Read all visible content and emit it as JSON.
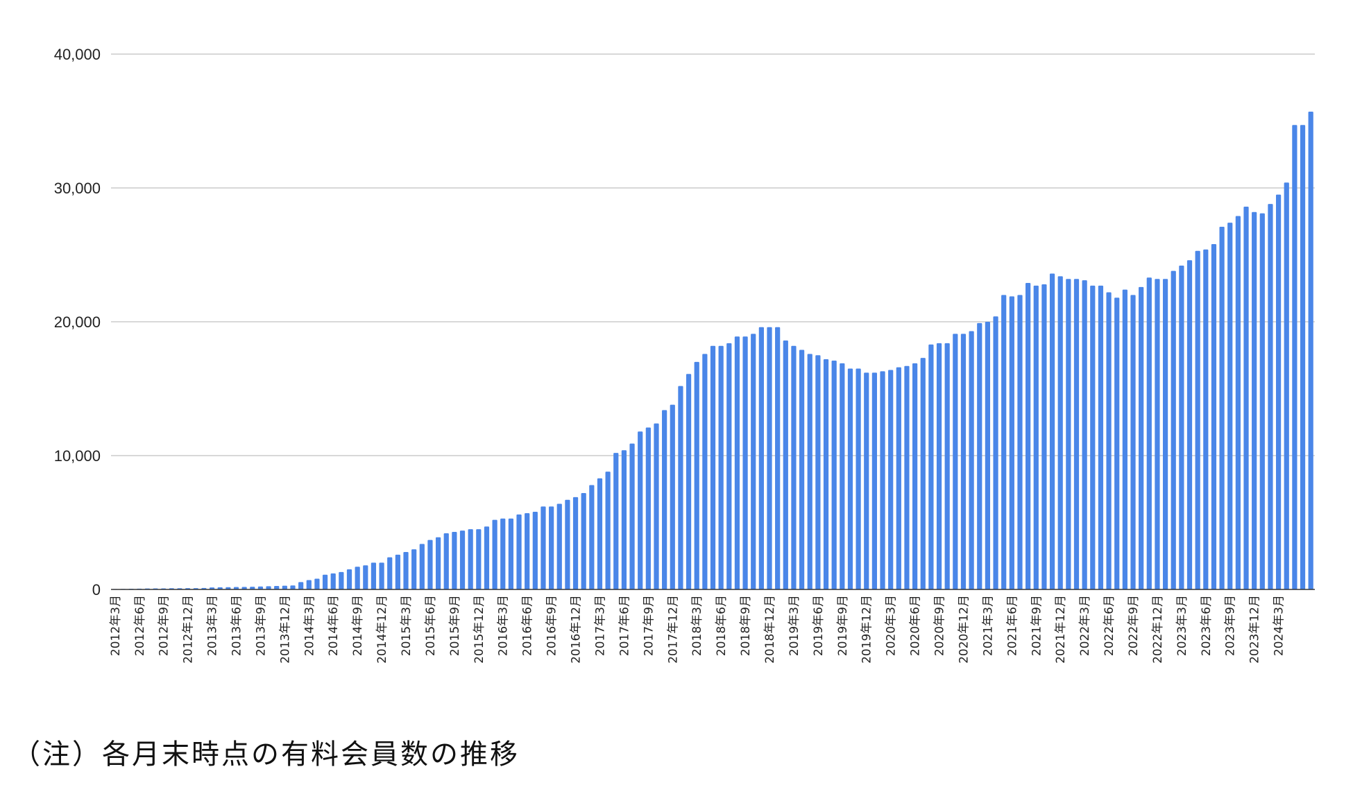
{
  "note": "（注）各月末時点の有料会員数の推移",
  "chart_data": {
    "type": "bar",
    "title": "",
    "xlabel": "",
    "ylabel": "",
    "ylim": [
      0,
      40000
    ],
    "yticks": [
      "0",
      "10,000",
      "20,000",
      "30,000",
      "40,000"
    ],
    "grid": true,
    "legend": "none",
    "bar_color": "#4a86e8",
    "start_year": 2012,
    "start_month": 3,
    "label_every": 3,
    "values": [
      30,
      40,
      50,
      60,
      70,
      80,
      80,
      90,
      90,
      100,
      100,
      110,
      150,
      160,
      170,
      180,
      190,
      200,
      220,
      240,
      260,
      280,
      300,
      550,
      700,
      800,
      1100,
      1200,
      1300,
      1500,
      1700,
      1800,
      2000,
      2000,
      2400,
      2600,
      2800,
      3000,
      3400,
      3700,
      3900,
      4200,
      4300,
      4400,
      4500,
      4500,
      4700,
      5200,
      5300,
      5300,
      5600,
      5700,
      5800,
      6200,
      6200,
      6400,
      6700,
      6900,
      7200,
      7800,
      8300,
      8800,
      10200,
      10400,
      10900,
      11800,
      12100,
      12400,
      13400,
      13800,
      15200,
      16100,
      17000,
      17600,
      18200,
      18200,
      18400,
      18900,
      18900,
      19100,
      19600,
      19600,
      19600,
      18600,
      18200,
      17900,
      17600,
      17500,
      17200,
      17100,
      16900,
      16500,
      16500,
      16200,
      16200,
      16300,
      16400,
      16600,
      16700,
      16900,
      17300,
      18300,
      18400,
      18400,
      19100,
      19100,
      19300,
      19900,
      20000,
      20400,
      22000,
      21900,
      22000,
      22900,
      22700,
      22800,
      23600,
      23400,
      23200,
      23200,
      23100,
      22700,
      22700,
      22200,
      21800,
      22400,
      22000,
      22600,
      23300,
      23200,
      23200,
      23800,
      24200,
      24600,
      25300,
      25400,
      25800,
      27100,
      27400,
      27900,
      28600,
      28200,
      28100,
      28800,
      29500,
      30400,
      34700,
      34700,
      35700
    ],
    "x_labels": [
      "2012年3月",
      "2012年6月",
      "2012年9月",
      "2012年12月",
      "2013年3月",
      "2013年6月",
      "2013年9月",
      "2013年12月",
      "2014年3月",
      "2014年6月",
      "2014年9月",
      "2014年12月",
      "2015年3月",
      "2015年6月",
      "2015年9月",
      "2015年12月",
      "2016年3月",
      "2016年6月",
      "2016年9月",
      "2016年12月",
      "2017年3月",
      "2017年6月",
      "2017年9月",
      "2017年12月",
      "2018年3月",
      "2018年6月",
      "2018年9月",
      "2018年12月",
      "2019年3月",
      "2019年6月",
      "2019年9月",
      "2019年12月",
      "2020年3月",
      "2020年6月",
      "2020年9月",
      "2020年12月",
      "2021年3月",
      "2021年6月",
      "2021年9月",
      "2021年12月",
      "2022年3月",
      "2022年6月",
      "2022年9月",
      "2022年12月",
      "2023年3月",
      "2023年6月",
      "2023年9月",
      "2023年12月",
      "2024年3月"
    ]
  }
}
